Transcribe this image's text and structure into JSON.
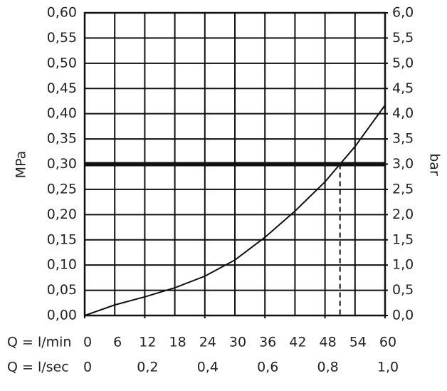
{
  "chart_data": {
    "type": "line",
    "ylabel": "MPa",
    "y2label": "bar",
    "xlabel": "Q = l/min",
    "x2label": "Q = l/sec",
    "x": [
      0,
      6,
      12,
      18,
      24,
      30,
      36,
      42,
      48,
      51,
      54,
      60
    ],
    "series": [
      {
        "color": "#111111",
        "values": [
          0,
          0.021,
          0.037,
          0.055,
          0.078,
          0.11,
          0.155,
          0.207,
          0.265,
          0.3,
          0.335,
          0.417
        ]
      }
    ],
    "xlim": [
      0,
      60
    ],
    "xticks": [
      0,
      6,
      12,
      18,
      24,
      30,
      36,
      42,
      48,
      54,
      60
    ],
    "x2lim": [
      0,
      1
    ],
    "x2ticks": [
      0,
      {
        "value": 0.2,
        "label": "0,2"
      },
      {
        "value": 0.4,
        "label": "0,4"
      },
      {
        "value": 0.6,
        "label": "0,6"
      },
      {
        "value": 0.8,
        "label": "0,8"
      },
      {
        "value": 1,
        "label": "1,0"
      }
    ],
    "ylim": [
      0,
      0.6
    ],
    "yticks": [
      {
        "value": 0,
        "label": "0,00"
      },
      {
        "value": 0.05,
        "label": "0,05"
      },
      {
        "value": 0.1,
        "label": "0,10"
      },
      {
        "value": 0.15,
        "label": "0,15"
      },
      {
        "value": 0.2,
        "label": "0,20"
      },
      {
        "value": 0.25,
        "label": "0,25"
      },
      {
        "value": 0.3,
        "label": "0,30"
      },
      {
        "value": 0.35,
        "label": "0,35"
      },
      {
        "value": 0.4,
        "label": "0,40"
      },
      {
        "value": 0.45,
        "label": "0,45"
      },
      {
        "value": 0.5,
        "label": "0,50"
      },
      {
        "value": 0.55,
        "label": "0,55"
      },
      {
        "value": 0.6,
        "label": "0,60"
      }
    ],
    "y2lim": [
      0,
      6
    ],
    "y2ticks": [
      {
        "value": 0,
        "label": "0,0"
      },
      {
        "value": 0.5,
        "label": "0,5"
      },
      {
        "value": 1,
        "label": "1,0"
      },
      {
        "value": 1.5,
        "label": "1,5"
      },
      {
        "value": 2,
        "label": "2,0"
      },
      {
        "value": 2.5,
        "label": "2,5"
      },
      {
        "value": 3,
        "label": "3,0"
      },
      {
        "value": 3.5,
        "label": "3,5"
      },
      {
        "value": 4,
        "label": "4,0"
      },
      {
        "value": 4.5,
        "label": "4,5"
      },
      {
        "value": 5,
        "label": "5,0"
      },
      {
        "value": 5.5,
        "label": "5,5"
      },
      {
        "value": 6,
        "label": "6,0"
      }
    ],
    "grid": true,
    "hline": 0.3,
    "dropline": {
      "x": 51,
      "y": 0.3
    }
  }
}
